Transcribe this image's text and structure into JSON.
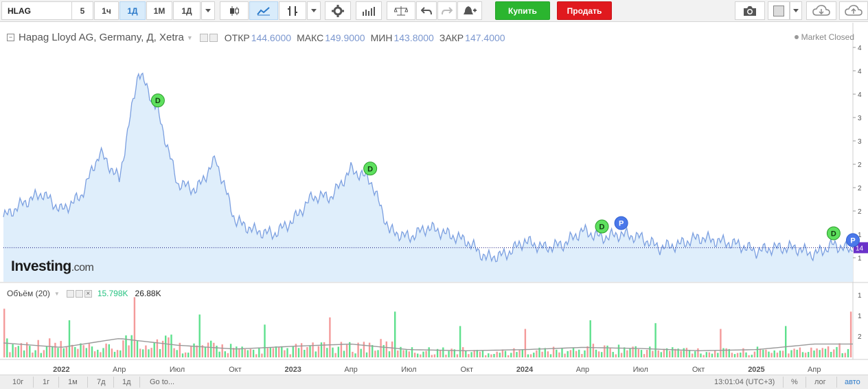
{
  "toolbar": {
    "symbol": "HLAG",
    "intervals": [
      "5",
      "1ч",
      "1Д",
      "1М",
      "1Д"
    ],
    "active_interval": "1Д",
    "buy_label": "Купить",
    "sell_label": "Продать",
    "buy_color": "#2bb52f",
    "sell_color": "#e0191e",
    "icons": [
      "candles-icon",
      "line-chart-icon",
      "indicator-icon",
      "dropdown-icon",
      "settings-gear-icon",
      "bar-chart-icon",
      "scales-icon",
      "undo-icon",
      "redo-icon",
      "alert-bell-icon",
      "camera-icon",
      "color-square-icon",
      "cloud-download-icon",
      "cloud-upload-icon"
    ]
  },
  "legend": {
    "name": "Hapag Lloyd AG, Germany, Д, Xetra",
    "open_label": "ОТКР",
    "open": "144.6000",
    "high_label": "МАКС",
    "high": "149.9000",
    "low_label": "МИН",
    "low": "143.8000",
    "close_label": "ЗАКР",
    "close": "147.4000"
  },
  "status": "Market Closed",
  "logo": {
    "main": "Investing",
    "suffix": ".com"
  },
  "volume_legend": {
    "name": "Объём (20)",
    "value1": "15.798K",
    "value2": "26.88K"
  },
  "bottom_bar": {
    "ranges": [
      "10г",
      "1г",
      "1м",
      "7д",
      "1д"
    ],
    "goto": "Go to...",
    "time": "13:01:04 (UTC+3)",
    "percent": "%",
    "log": "лог",
    "auto": "авто"
  },
  "chart_data": {
    "type": "area",
    "line_color": "#7b9fe0",
    "fill_color": "#dfeefb",
    "price_line_color": "#1a1a80",
    "x_tick_labels": [
      "2022",
      "Апр",
      "Июл",
      "Окт",
      "2023",
      "Апр",
      "Июл",
      "Окт",
      "2024",
      "Апр",
      "Июл",
      "Окт",
      "2025",
      "Апр"
    ],
    "x_range": [
      "2021-10",
      "2025-06"
    ],
    "y_tick_labels": [
      "4",
      "4",
      "4",
      "3",
      "3",
      "2",
      "2",
      "2",
      "1",
      "1"
    ],
    "current_price_label": "14",
    "volume_axis_labels": [
      "1",
      "1",
      "2"
    ],
    "markers": [
      {
        "label": "D",
        "date": "2022-06",
        "color": "#5ee05e"
      },
      {
        "label": "D",
        "date": "2023-05",
        "color": "#5ee05e"
      },
      {
        "label": "D",
        "date": "2024-05",
        "color": "#5ee05e"
      },
      {
        "label": "P",
        "date": "2024-06",
        "color": "#4a78ea"
      },
      {
        "label": "D",
        "date": "2025-05",
        "color": "#5ee05e"
      },
      {
        "label": "P",
        "date": "2025-06",
        "color": "#4a78ea"
      }
    ],
    "series": [
      {
        "x": [
          "2021-10",
          "2021-11",
          "2021-12",
          "2022-01",
          "2022-02",
          "2022-03",
          "2022-04",
          "2022-05",
          "2022-06",
          "2022-07",
          "2022-08",
          "2022-09",
          "2022-10",
          "2022-11",
          "2022-12",
          "2023-01",
          "2023-02",
          "2023-03",
          "2023-04",
          "2023-05",
          "2023-06",
          "2023-07",
          "2023-08",
          "2023-09",
          "2023-10",
          "2023-11",
          "2023-12",
          "2024-01",
          "2024-02",
          "2024-03",
          "2024-04",
          "2024-05",
          "2024-06",
          "2024-07",
          "2024-08",
          "2024-09",
          "2024-10",
          "2024-11",
          "2024-12",
          "2025-01",
          "2025-02",
          "2025-03",
          "2025-04",
          "2025-05",
          "2025-06"
        ],
        "values": [
          195,
          215,
          230,
          205,
          225,
          290,
          250,
          410,
          350,
          245,
          235,
          280,
          190,
          175,
          170,
          190,
          225,
          225,
          265,
          250,
          175,
          165,
          180,
          170,
          160,
          135,
          140,
          160,
          150,
          155,
          175,
          165,
          170,
          165,
          150,
          155,
          165,
          160,
          155,
          145,
          150,
          150,
          140,
          155,
          145
        ]
      },
      {
        "name": "Объём (20)",
        "x": [
          "2021-10",
          "2022-01",
          "2022-04",
          "2022-07",
          "2022-10",
          "2023-01",
          "2023-04",
          "2023-07",
          "2023-10",
          "2024-01",
          "2024-04",
          "2024-07",
          "2024-10",
          "2025-01",
          "2025-04"
        ],
        "values": [
          26,
          18,
          34,
          22,
          15,
          20,
          24,
          14,
          12,
          14,
          18,
          16,
          12,
          14,
          24
        ]
      }
    ]
  }
}
